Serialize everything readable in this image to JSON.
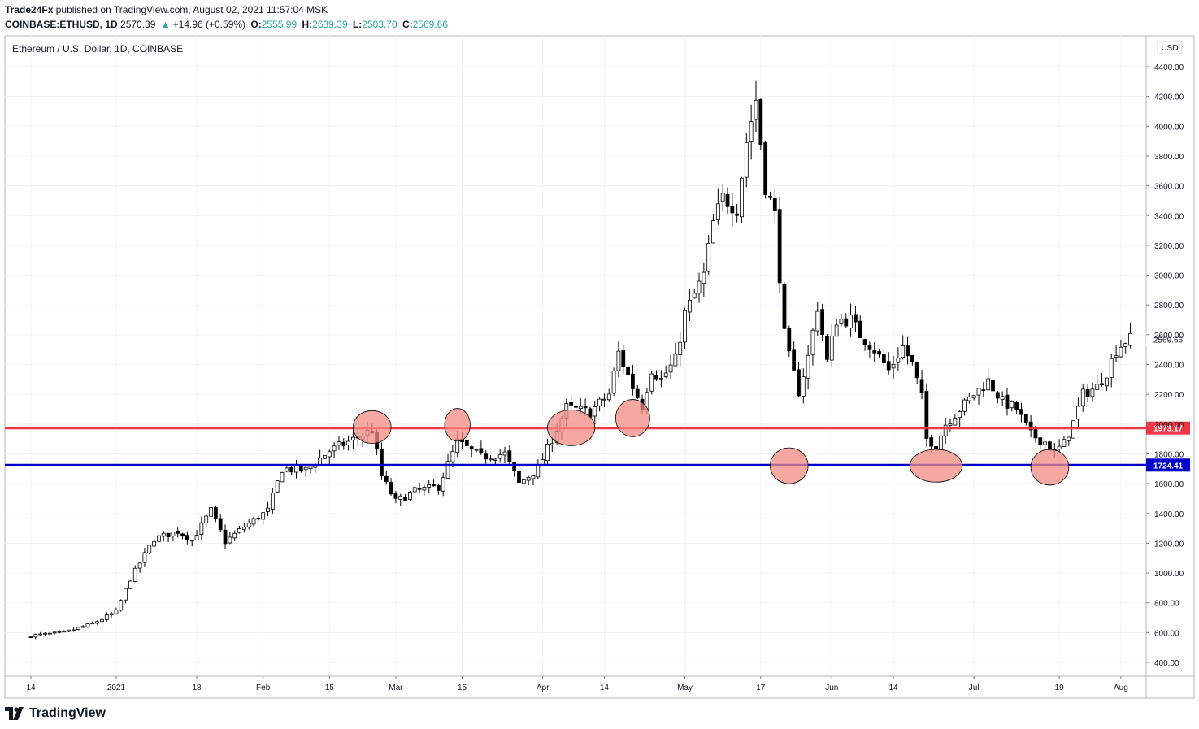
{
  "header": {
    "author": "Trade24Fx",
    "published_text": "published on TradingView.com, August 02, 2021 11:57:04 MSK",
    "symbol": "COINBASE:ETHUSD, 1D",
    "last": "2570.39",
    "change": "+14.96 (+0.59%)",
    "o_label": "O:",
    "o_value": "2555.99",
    "h_label": "H:",
    "h_value": "2639.39",
    "l_label": "L:",
    "l_value": "2503.70",
    "c_label": "C:",
    "c_value": "2569.66"
  },
  "footer": {
    "brand": "TradingView"
  },
  "colors": {
    "up": "#ffffff",
    "down": "#000000",
    "resistance": "#f23645",
    "support": "#0000cc",
    "marker": "#f28b82",
    "grid": "#f0f3fa"
  },
  "chart_data": {
    "type": "candlestick",
    "title": "Ethereum / U.S. Dollar, 1D, COINBASE",
    "currency_label": "USD",
    "y_range": [
      300,
      4500
    ],
    "y_ticks": [
      400,
      600,
      800,
      1000,
      1200,
      1400,
      1600,
      1800,
      2000,
      2200,
      2400,
      2600,
      2800,
      3000,
      3200,
      3400,
      3600,
      3800,
      4000,
      4200,
      4400
    ],
    "y_tick_labels": [
      "400.00",
      "600.00",
      "800.00",
      "1000.00",
      "1200.00",
      "1400.00",
      "1600.00",
      "1800.00",
      "2000.00",
      "2200.00",
      "2400.00",
      "2600.00",
      "2800.00",
      "3000.00",
      "3200.00",
      "3400.00",
      "3600.00",
      "3800.00",
      "4000.00",
      "4200.00",
      "4400.00"
    ],
    "x_labels": [
      {
        "label": "14",
        "day": 0
      },
      {
        "label": "2021",
        "day": 18
      },
      {
        "label": "18",
        "day": 35
      },
      {
        "label": "Feb",
        "day": 49
      },
      {
        "label": "15",
        "day": 63
      },
      {
        "label": "Mar",
        "day": 77
      },
      {
        "label": "15",
        "day": 91
      },
      {
        "label": "Apr",
        "day": 108
      },
      {
        "label": "14",
        "day": 121
      },
      {
        "label": "May",
        "day": 138
      },
      {
        "label": "17",
        "day": 154
      },
      {
        "label": "Jun",
        "day": 169
      },
      {
        "label": "14",
        "day": 182
      },
      {
        "label": "Jul",
        "day": 199
      },
      {
        "label": "19",
        "day": 217
      },
      {
        "label": "Aug",
        "day": 230
      }
    ],
    "horizontal_levels": [
      {
        "name": "resistance",
        "value": 1973.17,
        "label": "1973.17",
        "color": "#f23645"
      },
      {
        "name": "support",
        "value": 1724.41,
        "label": "1724.41",
        "color": "#0000cc"
      }
    ],
    "last_price": {
      "value": 2569.66,
      "label": "2569.66"
    },
    "touch_markers": [
      {
        "day": 72,
        "price": 1980,
        "rdays": 4.0,
        "rprice": 110
      },
      {
        "day": 90,
        "price": 1995,
        "rdays": 2.7,
        "rprice": 110
      },
      {
        "day": 114,
        "price": 1975,
        "rdays": 5.0,
        "rprice": 120
      },
      {
        "day": 127,
        "price": 2040,
        "rdays": 3.6,
        "rprice": 125
      },
      {
        "day": 160,
        "price": 1720,
        "rdays": 4.0,
        "rprice": 120
      },
      {
        "day": 191,
        "price": 1720,
        "rdays": 5.5,
        "rprice": 110
      },
      {
        "day": 215,
        "price": 1710,
        "rdays": 4.0,
        "rprice": 120
      }
    ],
    "anchors": [
      [
        0,
        580
      ],
      [
        7,
        600
      ],
      [
        13,
        660
      ],
      [
        18,
        740
      ],
      [
        21,
        960
      ],
      [
        26,
        1230
      ],
      [
        31,
        1280
      ],
      [
        34,
        1220
      ],
      [
        38,
        1420
      ],
      [
        41,
        1210
      ],
      [
        45,
        1310
      ],
      [
        50,
        1420
      ],
      [
        53,
        1700
      ],
      [
        58,
        1690
      ],
      [
        63,
        1820
      ],
      [
        67,
        1880
      ],
      [
        72,
        1960
      ],
      [
        74,
        1650
      ],
      [
        77,
        1480
      ],
      [
        81,
        1550
      ],
      [
        86,
        1580
      ],
      [
        90,
        1880
      ],
      [
        95,
        1780
      ],
      [
        100,
        1800
      ],
      [
        103,
        1600
      ],
      [
        107,
        1700
      ],
      [
        110,
        1900
      ],
      [
        113,
        2110
      ],
      [
        118,
        2080
      ],
      [
        122,
        2200
      ],
      [
        124,
        2480
      ],
      [
        127,
        2250
      ],
      [
        129,
        2120
      ],
      [
        131,
        2370
      ],
      [
        133,
        2300
      ],
      [
        136,
        2430
      ],
      [
        138,
        2740
      ],
      [
        142,
        3000
      ],
      [
        144,
        3350
      ],
      [
        146,
        3520
      ],
      [
        149,
        3450
      ],
      [
        151,
        3900
      ],
      [
        153,
        4180
      ],
      [
        155,
        3600
      ],
      [
        157,
        3400
      ],
      [
        159,
        2600
      ],
      [
        160,
        2450
      ],
      [
        162,
        2220
      ],
      [
        164,
        2450
      ],
      [
        166,
        2790
      ],
      [
        168,
        2420
      ],
      [
        170,
        2700
      ],
      [
        173,
        2700
      ],
      [
        175,
        2600
      ],
      [
        178,
        2500
      ],
      [
        181,
        2360
      ],
      [
        184,
        2520
      ],
      [
        186,
        2400
      ],
      [
        188,
        2180
      ],
      [
        189,
        1900
      ],
      [
        191,
        1860
      ],
      [
        193,
        2000
      ],
      [
        196,
        2100
      ],
      [
        199,
        2200
      ],
      [
        202,
        2290
      ],
      [
        205,
        2150
      ],
      [
        208,
        2100
      ],
      [
        211,
        1930
      ],
      [
        214,
        1880
      ],
      [
        216,
        1810
      ],
      [
        218,
        1870
      ],
      [
        220,
        2010
      ],
      [
        222,
        2200
      ],
      [
        225,
        2250
      ],
      [
        227,
        2350
      ],
      [
        229,
        2500
      ],
      [
        231,
        2560
      ],
      [
        232,
        2570
      ]
    ]
  }
}
